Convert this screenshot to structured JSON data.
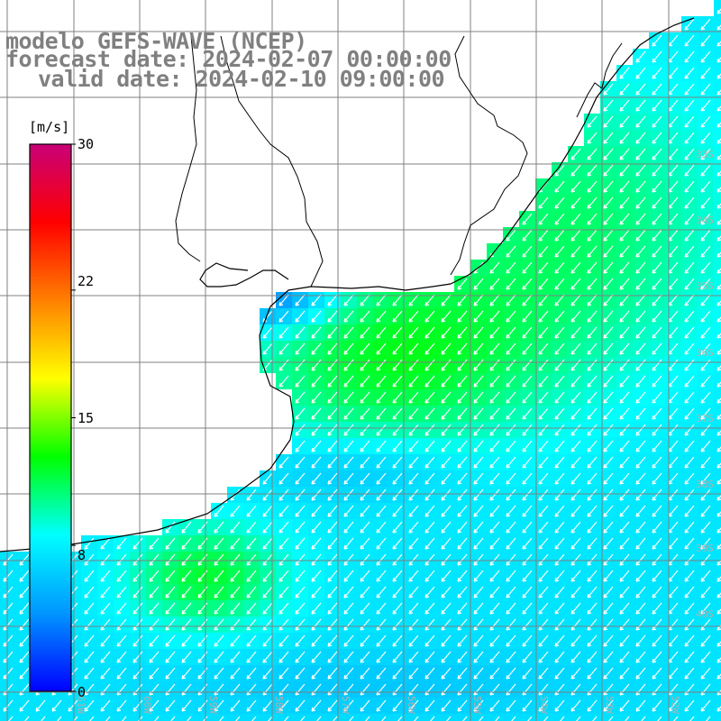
{
  "title": {
    "line1": "modelo GEFS-WAVE (NCEP)",
    "line2": "forecast date: 2024-02-07 00:00:00",
    "line3": "valid date: 2024-02-10 09:00:00"
  },
  "colorbar": {
    "unit": "[m/s]",
    "tick_labels": [
      "30",
      "22",
      "15",
      "8",
      "0"
    ],
    "tick_values": [
      30,
      22,
      15,
      8,
      0
    ],
    "min": 0,
    "max": 30,
    "colors": [
      "#0000ff",
      "#0096ff",
      "#00ffff",
      "#00ff00",
      "#ffff00",
      "#ff8000",
      "#ff0000",
      "#c80078"
    ]
  },
  "map": {
    "latitude_labels": [
      "33S",
      "34S",
      "35S",
      "36S",
      "37S",
      "38S",
      "39S",
      "40S"
    ],
    "longitude_labels": [
      "61W",
      "60W",
      "59W",
      "58W",
      "57W",
      "56W",
      "55W",
      "54W",
      "53W",
      "52W"
    ],
    "field": "wind speed",
    "arrow_direction": "toward southwest",
    "colors": {
      "land": "#ffffff",
      "grid": "#888888",
      "coast": "#000000",
      "arrows": "#ffffff"
    }
  }
}
